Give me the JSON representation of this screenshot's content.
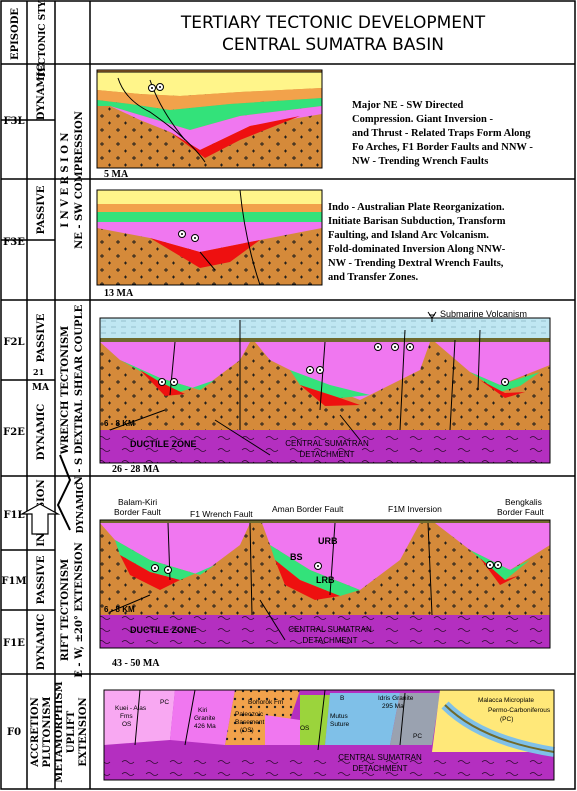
{
  "header": {
    "col_episode": "EPISODE",
    "col_tectonic_style": "TECTONIC STYLE",
    "title_line1": "TERTIARY TECTONIC DEVELOPMENT",
    "title_line2": "CENTRAL SUMATRA BASIN"
  },
  "episodes": [
    "F3L",
    "F3E",
    "F2L",
    "F2E",
    "F1L",
    "F1M",
    "F1E",
    "F0"
  ],
  "styles": {
    "f3l": "DYNAMIC",
    "f3e": "PASSIVE",
    "f2l": "PASSIVE",
    "f2e": "DYNAMIC",
    "ma21": "21",
    "ma": "MA",
    "f1l": "INVERSION",
    "f1m": "PASSIVE",
    "f1e": "DYNAMIC"
  },
  "regimes": {
    "inversion": "I N V E R S I O N",
    "ne_sw": "NE - SW  COMPRESSION",
    "wrench": "WRENCH TECTONISM",
    "dextral": "N - S  DEXTRAL SHEAR COUPLE",
    "dynamic_arrow": "DYNAMIC",
    "rift": "RIFT TECTONISM",
    "ew": "E - W, ±20°  EXTENSION",
    "f0": [
      "ACCRETION",
      "PLUTONISM",
      "METAMORPHISM",
      "UPLIFT",
      "EXTENSION"
    ]
  },
  "panels": {
    "f3l": {
      "age": "5 MA",
      "desc": [
        "Major  NE - SW   Directed",
        "Compression.   Giant  Inversion  -",
        "and Thrust - Related Traps Form Along",
        "Fo Arches, F1 Border Faults and NNW -",
        "NW - Trending  Wrench  Faults"
      ]
    },
    "f3e": {
      "age": "13 MA",
      "desc": [
        "Indo - Australian Plate Reorganization.",
        "Initiate Barisan Subduction, Transform",
        "Faulting,  and  Island  Arc  Volcanism.",
        "Fold-dominated Inversion Along NNW-",
        "NW - Trending  Dextral Wrench Faults,",
        "and  Transfer Zones."
      ]
    },
    "f2": {
      "age": "26 - 28 MA",
      "volcanism": "Submarine Volcanism",
      "depth": "6 - 8 KM",
      "ductile": "DUCTILE ZONE",
      "detach1": "CENTRAL SUMATRAN",
      "detach2": "DETACHMENT"
    },
    "f1": {
      "age": "43 - 50 MA",
      "balam1": "Balam-Kiri",
      "balam2": "Border Fault",
      "f1wrench": "F1 Wrench Fault",
      "aman": "Aman Border Fault",
      "f1m_inv": "F1M Inversion",
      "bengkalis1": "Bengkalis",
      "bengkalis2": "Border Fault",
      "urb": "URB",
      "bs": "BS",
      "lrb": "LRB",
      "depth": "6 - 8 KM",
      "ductile": "DUCTILE ZONE",
      "detach1": "CENTRAL SUMATRAN",
      "detach2": "DETACHMENT"
    },
    "f0": {
      "kuei1": "Kuei - Alas",
      "kuei2": "Fms",
      "kuei3": "OS",
      "pc1": "PC",
      "kiri1": "Kiri",
      "kiri2": "Granite",
      "kiri3": "426 Ma",
      "bohorok": "Bohorok Fm",
      "paleo1": "Paleozoic",
      "paleo2": "Basement",
      "paleo3": "(OS)",
      "os1": "OS",
      "mutus1": "Mutus",
      "mutus2": "Suture",
      "b": "B",
      "idris1": "Idris Granite",
      "idris2": "295 Ma",
      "pc2": "PC",
      "malacca1": "Malacca Microplate",
      "malacca2": "Permo-Carboniferous",
      "malacca3": "(PC)",
      "detach1": "CENTRAL SUMATRAN",
      "detach2": "DETACHMENT"
    }
  },
  "colors": {
    "sky": "#c9ecf5",
    "yellow": "#fff58a",
    "orange": "#f2a24b",
    "green": "#33e27a",
    "magenta": "#f077f0",
    "red": "#ee1010",
    "basement": "#d58a3a",
    "ductile": "#b42fc0",
    "water": "#bfe7f2",
    "olive": "#6f6a2d",
    "lime": "#9bd43c",
    "pink_light": "#f8a8f2",
    "f0_yellow": "#ffe879",
    "f0_blue": "#7fc0e8",
    "f0_grey": "#9aa2b0"
  }
}
